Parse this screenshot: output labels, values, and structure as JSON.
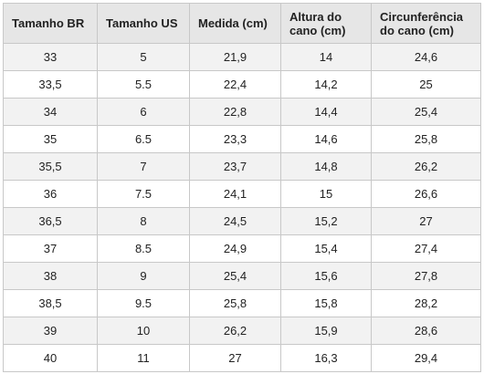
{
  "table": {
    "header": [
      "Tamanho BR",
      "Tamanho US",
      "Medida (cm)",
      "Altura do cano (cm)",
      "Circunferência do cano (cm)"
    ],
    "rows": [
      [
        "33",
        "5",
        "21,9",
        "14",
        "24,6"
      ],
      [
        "33,5",
        "5.5",
        "22,4",
        "14,2",
        "25"
      ],
      [
        "34",
        "6",
        "22,8",
        "14,4",
        "25,4"
      ],
      [
        "35",
        "6.5",
        "23,3",
        "14,6",
        "25,8"
      ],
      [
        "35,5",
        "7",
        "23,7",
        "14,8",
        "26,2"
      ],
      [
        "36",
        "7.5",
        "24,1",
        "15",
        "26,6"
      ],
      [
        "36,5",
        "8",
        "24,5",
        "15,2",
        "27"
      ],
      [
        "37",
        "8.5",
        "24,9",
        "15,4",
        "27,4"
      ],
      [
        "38",
        "9",
        "25,4",
        "15,6",
        "27,8"
      ],
      [
        "38,5",
        "9.5",
        "25,8",
        "15,8",
        "28,2"
      ],
      [
        "39",
        "10",
        "26,2",
        "15,9",
        "28,6"
      ],
      [
        "40",
        "11",
        "27",
        "16,3",
        "29,4"
      ]
    ]
  }
}
